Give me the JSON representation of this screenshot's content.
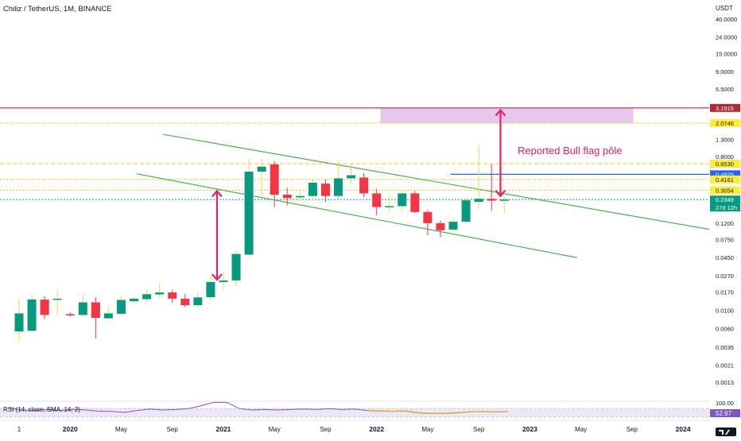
{
  "header": {
    "title": "Chiliz / TetherUS, 1M, BINANCE"
  },
  "price_axis": {
    "unit": "USDT",
    "ticks": [
      {
        "label": "40.0000",
        "v": 40.0
      },
      {
        "label": "24.0000",
        "v": 24.0
      },
      {
        "label": "15.0000",
        "v": 15.0
      },
      {
        "label": "9.0000",
        "v": 9.0
      },
      {
        "label": "5.5000",
        "v": 5.5
      },
      {
        "label": "1.3000",
        "v": 1.3
      },
      {
        "label": "0.8000",
        "v": 0.8
      },
      {
        "label": "0.1200",
        "v": 0.12
      },
      {
        "label": "0.0750",
        "v": 0.075
      },
      {
        "label": "0.0450",
        "v": 0.045
      },
      {
        "label": "0.0270",
        "v": 0.027
      },
      {
        "label": "0.0170",
        "v": 0.017
      },
      {
        "label": "0.0100",
        "v": 0.01
      },
      {
        "label": "0.0060",
        "v": 0.006
      },
      {
        "label": "0.0035",
        "v": 0.0035
      },
      {
        "label": "0.0021",
        "v": 0.0021
      },
      {
        "label": "0.0013",
        "v": 0.0013
      }
    ],
    "badges": [
      {
        "label": "3.1915",
        "v": 3.1915,
        "bg": "#b22833",
        "fg": "#ffffff"
      },
      {
        "label": "2.0746",
        "v": 2.0746,
        "bg": "#ffeb3b",
        "fg": "#131722"
      },
      {
        "label": "0.6530",
        "v": 0.653,
        "bg": "#ffeb3b",
        "fg": "#131722"
      },
      {
        "label": "0.4825",
        "v": 0.4825,
        "bg": "#2962ff",
        "fg": "#ffffff"
      },
      {
        "label": "0.4161",
        "v": 0.4161,
        "bg": "#ffeb3b",
        "fg": "#131722"
      },
      {
        "label": "0.3054",
        "v": 0.3054,
        "bg": "#ffeb3b",
        "fg": "#131722"
      },
      {
        "label": "0.2349",
        "v": 0.2349,
        "bg": "#089981",
        "fg": "#ffffff",
        "sub": "27d 12h"
      }
    ]
  },
  "time_axis": {
    "labels": [
      {
        "label": "1",
        "m": 0
      },
      {
        "label": "2020",
        "m": 4
      },
      {
        "label": "May",
        "m": 8
      },
      {
        "label": "Sep",
        "m": 12
      },
      {
        "label": "2021",
        "m": 16
      },
      {
        "label": "May",
        "m": 20
      },
      {
        "label": "Sep",
        "m": 24
      },
      {
        "label": "2022",
        "m": 28
      },
      {
        "label": "May",
        "m": 32
      },
      {
        "label": "Sep",
        "m": 36
      },
      {
        "label": "2023",
        "m": 40
      },
      {
        "label": "May",
        "m": 44
      },
      {
        "label": "Sep",
        "m": 48
      },
      {
        "label": "2024",
        "m": 52
      }
    ]
  },
  "annotation": {
    "text": "Reported Bull flag pôle"
  },
  "rsi": {
    "label": "RSI (14, close, SMA, 14, 2)",
    "value_label": "52.97",
    "top_label": "100.00",
    "value": 52.97,
    "line": [
      68,
      60,
      58,
      62,
      58,
      63,
      60,
      55,
      54,
      50,
      58,
      64,
      60,
      62,
      66,
      78,
      92,
      92,
      66,
      60,
      62,
      60,
      62,
      64,
      62,
      66,
      62,
      64,
      58,
      56,
      54,
      56,
      48,
      46,
      46,
      48,
      52,
      54,
      52,
      53
    ],
    "colors": {
      "line": "#7e57c2",
      "sma": "#f0b90b",
      "band": "#e8e0f8"
    }
  },
  "chart_data": {
    "type": "candlestick",
    "title": "Chiliz / TetherUS, 1M, BINANCE",
    "y_scale": "log",
    "y_unit": "USDT",
    "ylim": [
      0.001,
      60
    ],
    "x_unit": "months since Oct 2019",
    "candles": [
      {
        "m": 0,
        "o": 0.0055,
        "h": 0.014,
        "l": 0.004,
        "c": 0.0092
      },
      {
        "m": 1,
        "o": 0.0056,
        "h": 0.016,
        "l": 0.0055,
        "c": 0.0137
      },
      {
        "m": 2,
        "o": 0.0136,
        "h": 0.015,
        "l": 0.0078,
        "c": 0.0088
      },
      {
        "m": 3,
        "o": 0.0137,
        "h": 0.018,
        "l": 0.0087,
        "c": 0.014
      },
      {
        "m": 4,
        "o": 0.009,
        "h": 0.0095,
        "l": 0.0084,
        "c": 0.0088
      },
      {
        "m": 5,
        "o": 0.0088,
        "h": 0.016,
        "l": 0.0085,
        "c": 0.0126
      },
      {
        "m": 6,
        "o": 0.0126,
        "h": 0.0145,
        "l": 0.0045,
        "c": 0.0081
      },
      {
        "m": 7,
        "o": 0.008,
        "h": 0.011,
        "l": 0.0078,
        "c": 0.0092
      },
      {
        "m": 8,
        "o": 0.0091,
        "h": 0.015,
        "l": 0.0088,
        "c": 0.0135
      },
      {
        "m": 9,
        "o": 0.013,
        "h": 0.0145,
        "l": 0.0125,
        "c": 0.014
      },
      {
        "m": 10,
        "o": 0.0138,
        "h": 0.018,
        "l": 0.0125,
        "c": 0.0159
      },
      {
        "m": 11,
        "o": 0.0158,
        "h": 0.022,
        "l": 0.0145,
        "c": 0.0167
      },
      {
        "m": 12,
        "o": 0.0167,
        "h": 0.018,
        "l": 0.0125,
        "c": 0.014
      },
      {
        "m": 13,
        "o": 0.014,
        "h": 0.016,
        "l": 0.011,
        "c": 0.0116
      },
      {
        "m": 14,
        "o": 0.0116,
        "h": 0.017,
        "l": 0.011,
        "c": 0.0145
      },
      {
        "m": 15,
        "o": 0.0146,
        "h": 0.027,
        "l": 0.0135,
        "c": 0.0225
      },
      {
        "m": 16,
        "o": 0.0225,
        "h": 0.03,
        "l": 0.018,
        "c": 0.0235
      },
      {
        "m": 17,
        "o": 0.0235,
        "h": 0.055,
        "l": 0.02,
        "c": 0.05
      },
      {
        "m": 18,
        "o": 0.049,
        "h": 0.75,
        "l": 0.046,
        "c": 0.52
      },
      {
        "m": 19,
        "o": 0.52,
        "h": 0.76,
        "l": 0.26,
        "c": 0.6
      },
      {
        "m": 20,
        "o": 0.64,
        "h": 0.7,
        "l": 0.19,
        "c": 0.27
      },
      {
        "m": 21,
        "o": 0.27,
        "h": 0.33,
        "l": 0.2,
        "c": 0.245
      },
      {
        "m": 22,
        "o": 0.25,
        "h": 0.3,
        "l": 0.22,
        "c": 0.26
      },
      {
        "m": 23,
        "o": 0.26,
        "h": 0.43,
        "l": 0.23,
        "c": 0.38
      },
      {
        "m": 24,
        "o": 0.37,
        "h": 0.42,
        "l": 0.22,
        "c": 0.26
      },
      {
        "m": 25,
        "o": 0.26,
        "h": 0.7,
        "l": 0.24,
        "c": 0.43
      },
      {
        "m": 26,
        "o": 0.43,
        "h": 0.65,
        "l": 0.37,
        "c": 0.47
      },
      {
        "m": 27,
        "o": 0.44,
        "h": 0.5,
        "l": 0.25,
        "c": 0.28
      },
      {
        "m": 28,
        "o": 0.28,
        "h": 0.32,
        "l": 0.15,
        "c": 0.19
      },
      {
        "m": 29,
        "o": 0.19,
        "h": 0.26,
        "l": 0.16,
        "c": 0.195
      },
      {
        "m": 30,
        "o": 0.195,
        "h": 0.31,
        "l": 0.17,
        "c": 0.28
      },
      {
        "m": 31,
        "o": 0.28,
        "h": 0.3,
        "l": 0.16,
        "c": 0.165
      },
      {
        "m": 32,
        "o": 0.165,
        "h": 0.175,
        "l": 0.085,
        "c": 0.12
      },
      {
        "m": 33,
        "o": 0.12,
        "h": 0.13,
        "l": 0.08,
        "c": 0.098
      },
      {
        "m": 34,
        "o": 0.1,
        "h": 0.14,
        "l": 0.095,
        "c": 0.125
      },
      {
        "m": 35,
        "o": 0.125,
        "h": 0.25,
        "l": 0.12,
        "c": 0.23
      },
      {
        "m": 36,
        "o": 0.22,
        "h": 1.1,
        "l": 0.18,
        "c": 0.24
      },
      {
        "m": 37,
        "o": 0.24,
        "h": 0.64,
        "l": 0.17,
        "c": 0.228
      },
      {
        "m": 38,
        "o": 0.228,
        "h": 0.26,
        "l": 0.16,
        "c": 0.2349
      }
    ],
    "colors": {
      "up": "#089981",
      "down": "#f23645",
      "up_wick": "#f0d84a"
    },
    "horizontal_lines": [
      {
        "v": 3.1915,
        "style": "solid",
        "color": "#b22833"
      },
      {
        "v": 2.0746,
        "style": "dotted",
        "color": "#f0c419"
      },
      {
        "v": 0.653,
        "style": "dashed",
        "color": "#f0c419"
      },
      {
        "v": 0.4161,
        "style": "dotted",
        "color": "#f0c419"
      },
      {
        "v": 0.3054,
        "style": "dotted",
        "color": "#f0c419"
      },
      {
        "v": 0.2349,
        "style": "dotted",
        "color": "#089981"
      }
    ],
    "blue_line": {
      "v": 0.4825,
      "m1": 33.8,
      "m2": 60,
      "color": "#2962ff"
    },
    "channel": {
      "color": "#4caf50",
      "upper": [
        {
          "m": 11.3,
          "v": 1.5
        },
        {
          "m": 55.5,
          "v": 0.092
        }
      ],
      "lower": [
        {
          "m": 9.2,
          "v": 0.49
        },
        {
          "m": 43.7,
          "v": 0.045
        }
      ]
    },
    "zone": {
      "m1": 28.3,
      "m2": 48.1,
      "v_low": 2.07,
      "v_high": 3.19,
      "color": "#e1bee7"
    },
    "arrows": [
      {
        "m": 15.5,
        "v_from": 0.024,
        "v_to": 0.3,
        "color": "#e91e63"
      },
      {
        "m": 37.7,
        "v_from": 0.26,
        "v_to": 3.0,
        "color": "#e91e63"
      }
    ],
    "annotation": {
      "text": "Reported Bull flag pôle",
      "m": 38.3,
      "v": 1.1,
      "color": "#e91e63"
    }
  }
}
